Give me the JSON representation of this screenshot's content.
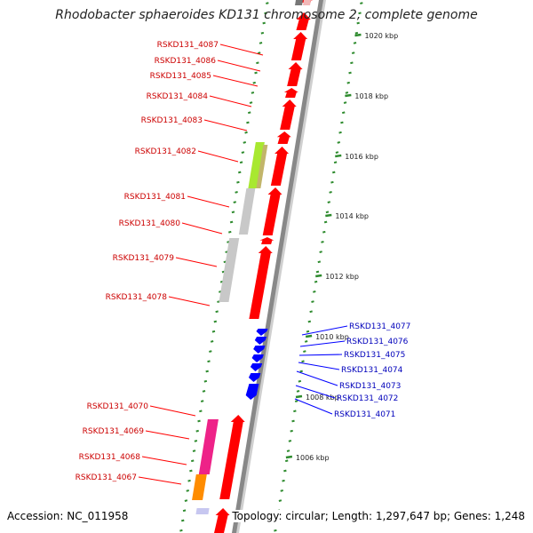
{
  "title": "Rhodobacter sphaeroides KD131 chromosome 2, complete genome",
  "accession": "Accession: NC_011958",
  "topology": "Topology: circular; Length: 1,297,647 bp; Genes: 1,248",
  "colors": {
    "forward": "#ff0000",
    "reverse": "#0000ff",
    "forward_label": "#cc0000",
    "reverse_label": "#0000bb",
    "ticks": "#2e8b2e",
    "backbone": "#888888"
  },
  "scale_labels": [
    "1020 kbp",
    "1018 kbp",
    "1016 kbp",
    "1014 kbp",
    "1012 kbp",
    "1010 kbp",
    "1008 kbp",
    "1006 kbp"
  ],
  "forward_genes": [
    "RSKD131_4087",
    "RSKD131_4086",
    "RSKD131_4085",
    "RSKD131_4084",
    "RSKD131_4083",
    "RSKD131_4082",
    "RSKD131_4081",
    "RSKD131_4080",
    "RSKD131_4079",
    "RSKD131_4078",
    "RSKD131_4070",
    "RSKD131_4069",
    "RSKD131_4068",
    "RSKD131_4067"
  ],
  "reverse_genes": [
    "RSKD131_4077",
    "RSKD131_4076",
    "RSKD131_4075",
    "RSKD131_4074",
    "RSKD131_4073",
    "RSKD131_4072",
    "RSKD131_4071"
  ]
}
